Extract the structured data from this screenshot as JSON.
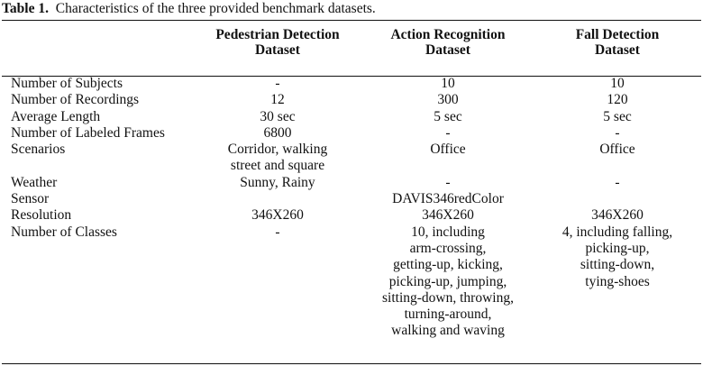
{
  "caption": {
    "label": "Table 1.",
    "text": "Characteristics of the three provided benchmark datasets."
  },
  "columns": [
    {
      "line1": "Pedestrian Detection",
      "line2": "Dataset"
    },
    {
      "line1": "Action Recognition",
      "line2": "Dataset"
    },
    {
      "line1": "Fall Detection",
      "line2": "Dataset"
    }
  ],
  "rows": [
    {
      "label": "Number of Subjects",
      "cells": [
        [
          "-"
        ],
        [
          "10"
        ],
        [
          "10"
        ]
      ]
    },
    {
      "label": "Number of Recordings",
      "cells": [
        [
          "12"
        ],
        [
          "300"
        ],
        [
          "120"
        ]
      ]
    },
    {
      "label": "Average Length",
      "cells": [
        [
          "30 sec"
        ],
        [
          "5 sec"
        ],
        [
          "5 sec"
        ]
      ]
    },
    {
      "label": "Number of Labeled Frames",
      "cells": [
        [
          "6800"
        ],
        [
          "-"
        ],
        [
          "-"
        ]
      ]
    },
    {
      "label": "Scenarios",
      "cells": [
        [
          "Corridor, walking",
          "street and square"
        ],
        [
          "Office"
        ],
        [
          "Office"
        ]
      ]
    },
    {
      "label": "Weather",
      "cells": [
        [
          "Sunny, Rainy"
        ],
        [
          "-"
        ],
        [
          "-"
        ]
      ]
    },
    {
      "label": "Sensor",
      "cells": [
        [
          ""
        ],
        [
          "DAVIS346redColor"
        ],
        [
          ""
        ]
      ]
    },
    {
      "label": "Resolution",
      "cells": [
        [
          "346X260"
        ],
        [
          "346X260"
        ],
        [
          "346X260"
        ]
      ]
    },
    {
      "label": "Number of Classes",
      "cells": [
        [
          "-"
        ],
        [
          "10, including",
          "arm-crossing,",
          "getting-up, kicking,",
          "picking-up, jumping,",
          "sitting-down, throwing,",
          "turning-around,",
          "walking and waving"
        ],
        [
          "4, including falling,",
          "picking-up,",
          "sitting-down,",
          "tying-shoes"
        ]
      ]
    }
  ]
}
